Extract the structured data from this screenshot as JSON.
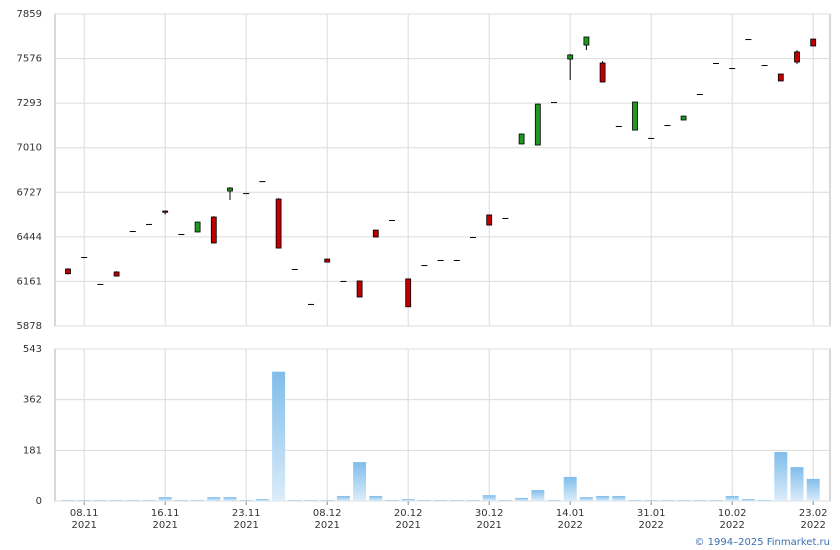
{
  "chart_data": [
    {
      "type": "candlestick",
      "ylim": [
        5878,
        7859
      ],
      "yticks": [
        5878,
        6161,
        6444,
        6727,
        7010,
        7293,
        7576,
        7859
      ],
      "up_color": "#1f9a1f",
      "down_color": "#c00000",
      "open": [
        6240,
        6316,
        6145,
        6221,
        6481,
        6526,
        6608,
        6462,
        6475,
        6570,
        6735,
        6722,
        6798,
        6684,
        6240,
        6018,
        6303,
        6164,
        6164,
        6487,
        6551,
        6177,
        6265,
        6297,
        6297,
        6443,
        6583,
        6564,
        7034,
        7027,
        7300,
        7573,
        7662,
        7548,
        7148,
        7122,
        7072,
        7154,
        7186,
        7351,
        7548,
        7516,
        7700,
        7535,
        7478,
        7618,
        7700
      ],
      "high": [
        6245,
        6316,
        6145,
        6226,
        6481,
        6526,
        6612,
        6462,
        6540,
        6575,
        6760,
        6722,
        6798,
        6690,
        6240,
        6018,
        6306,
        6164,
        6166,
        6490,
        6551,
        6180,
        6265,
        6297,
        6297,
        6443,
        6586,
        6564,
        7099,
        7290,
        7300,
        7604,
        7716,
        7560,
        7148,
        7303,
        7072,
        7154,
        7213,
        7351,
        7548,
        7516,
        7700,
        7535,
        7481,
        7630,
        7703
      ],
      "low": [
        6205,
        6316,
        6145,
        6192,
        6481,
        6526,
        6586,
        6462,
        6472,
        6402,
        6678,
        6722,
        6798,
        6370,
        6240,
        6018,
        6281,
        6164,
        6060,
        6440,
        6551,
        5998,
        6265,
        6297,
        6297,
        6443,
        6516,
        6564,
        7031,
        7024,
        7300,
        7440,
        7630,
        7424,
        7148,
        7119,
        7072,
        7154,
        7184,
        7351,
        7548,
        7516,
        7700,
        7535,
        7431,
        7541,
        7653
      ],
      "close": [
        6210,
        6316,
        6145,
        6195,
        6481,
        6526,
        6600,
        6462,
        6538,
        6405,
        6754,
        6722,
        6798,
        6373,
        6240,
        6018,
        6284,
        6164,
        6062,
        6443,
        6551,
        6000,
        6265,
        6297,
        6297,
        6443,
        6519,
        6564,
        7097,
        7287,
        7300,
        7599,
        7713,
        7427,
        7148,
        7300,
        7072,
        7154,
        7211,
        7351,
        7548,
        7516,
        7700,
        7535,
        7434,
        7554,
        7656
      ]
    },
    {
      "type": "bar",
      "ylim": [
        0,
        543
      ],
      "yticks": [
        0,
        181,
        362,
        543
      ],
      "color": "#7fbdea",
      "values": [
        3,
        3,
        3,
        3,
        3,
        3,
        14,
        3,
        3,
        14,
        14,
        3,
        7,
        462,
        3,
        3,
        3,
        18,
        139,
        18,
        3,
        7,
        3,
        3,
        3,
        3,
        21,
        3,
        11,
        39,
        3,
        86,
        14,
        18,
        18,
        3,
        3,
        3,
        3,
        3,
        3,
        18,
        7,
        3,
        175,
        121,
        79
      ],
      "categories": [
        null,
        "08.11",
        null,
        null,
        null,
        null,
        "16.11",
        null,
        null,
        null,
        null,
        "23.11",
        null,
        null,
        null,
        null,
        "08.12",
        null,
        null,
        null,
        null,
        "20.12",
        null,
        null,
        null,
        null,
        "30.12",
        null,
        null,
        null,
        null,
        "14.01",
        null,
        null,
        null,
        null,
        "31.01",
        null,
        null,
        null,
        null,
        "10.02",
        null,
        null,
        null,
        null,
        "23.02"
      ],
      "category_years": [
        null,
        "2021",
        null,
        null,
        null,
        null,
        "2021",
        null,
        null,
        null,
        null,
        "2021",
        null,
        null,
        null,
        null,
        "2021",
        null,
        null,
        null,
        null,
        "2021",
        null,
        null,
        null,
        null,
        "2021",
        null,
        null,
        null,
        null,
        "2022",
        null,
        null,
        null,
        null,
        "2022",
        null,
        null,
        null,
        null,
        "2022",
        null,
        null,
        null,
        null,
        "2022"
      ],
      "footer": "© 1994–2025 Finmarket.ru"
    }
  ]
}
